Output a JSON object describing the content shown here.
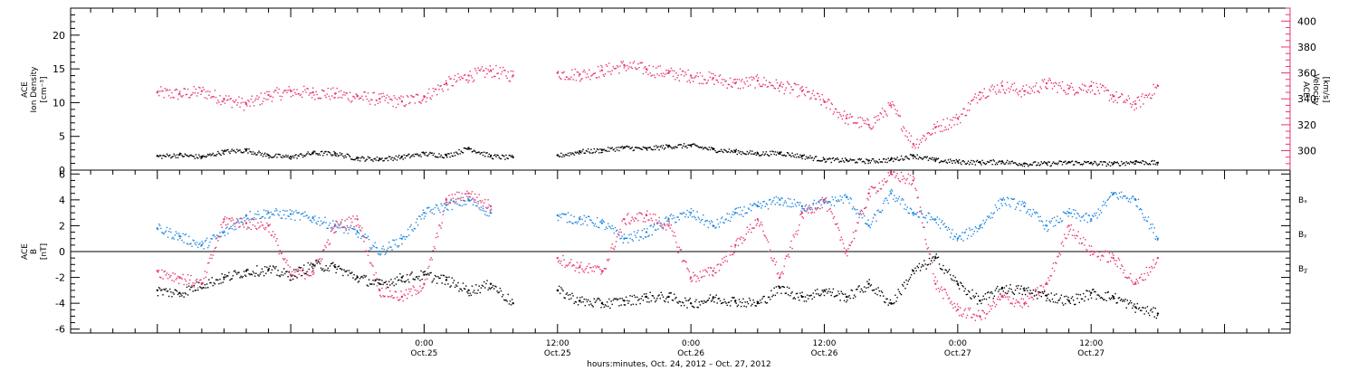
{
  "chart_data": [
    {
      "type": "scatter",
      "panel": "top",
      "ylabel_lines": [
        "ACE",
        "Ion Density",
        "[cm⁻³]"
      ],
      "y2label_lines": [
        "ACE",
        "Velocity",
        "[km/s]"
      ],
      "ylim": [
        0,
        24
      ],
      "y2lim": [
        285,
        410
      ],
      "yticks": [
        0,
        5,
        10,
        15,
        20
      ],
      "y2ticks": [
        300,
        320,
        340,
        360,
        380,
        400
      ],
      "series": [
        {
          "axis": "left",
          "color": "#000000",
          "x": [
            0,
            2,
            4,
            6,
            8,
            10,
            12,
            14,
            16,
            18,
            20,
            22,
            24,
            26,
            28,
            30,
            32,
            34,
            36,
            38,
            40,
            42,
            44,
            46,
            48,
            50,
            52,
            54,
            56,
            58,
            60,
            62,
            64,
            66,
            68,
            70,
            72,
            74,
            76,
            78,
            80,
            82,
            84,
            86,
            88,
            90
          ],
          "y": [
            2.1,
            2.3,
            2.0,
            2.8,
            3.0,
            2.2,
            2.0,
            2.6,
            2.5,
            1.8,
            1.7,
            2.0,
            2.5,
            2.2,
            3.3,
            2.1,
            1.9,
            null,
            2.2,
            2.8,
            3.0,
            3.4,
            3.2,
            3.6,
            3.7,
            3.1,
            2.8,
            2.5,
            2.6,
            2.1,
            1.6,
            1.5,
            1.4,
            1.6,
            2.2,
            1.5,
            1.3,
            1.2,
            1.3,
            1.0,
            1.0,
            1.2,
            1.1,
            1.0,
            1.3,
            1.1
          ]
        },
        {
          "axis": "right",
          "color": "#e8356c",
          "x": [
            0,
            2,
            4,
            6,
            8,
            10,
            12,
            14,
            16,
            18,
            20,
            22,
            24,
            26,
            28,
            30,
            32,
            34,
            36,
            38,
            40,
            42,
            44,
            46,
            48,
            50,
            52,
            54,
            56,
            58,
            60,
            62,
            64,
            66,
            68,
            70,
            72,
            74,
            76,
            78,
            80,
            82,
            84,
            86,
            88,
            90
          ],
          "y": [
            345,
            344,
            346,
            340,
            336,
            343,
            346,
            345,
            344,
            342,
            340,
            338,
            342,
            352,
            358,
            362,
            358,
            null,
            360,
            359,
            362,
            366,
            363,
            360,
            358,
            356,
            352,
            354,
            350,
            346,
            338,
            325,
            320,
            335,
            305,
            318,
            325,
            345,
            350,
            346,
            352,
            348,
            350,
            342,
            336,
            350
          ]
        }
      ]
    },
    {
      "type": "scatter",
      "panel": "bottom",
      "ylabel_lines": [
        "ACE",
        "B",
        "[nT]"
      ],
      "ylim": [
        -6.3,
        6.3
      ],
      "yticks": [
        -6,
        -4,
        -2,
        0,
        2,
        4,
        6
      ],
      "series": [
        {
          "name": "Bₓ",
          "color": "#000000",
          "x": [
            0,
            2,
            4,
            6,
            8,
            10,
            12,
            14,
            16,
            18,
            20,
            22,
            24,
            26,
            28,
            30,
            32,
            34,
            36,
            38,
            40,
            42,
            44,
            46,
            48,
            50,
            52,
            54,
            56,
            58,
            60,
            62,
            64,
            66,
            68,
            70,
            72,
            74,
            76,
            78,
            80,
            82,
            84,
            86,
            88,
            90
          ],
          "y": [
            -3.0,
            -3.2,
            -2.5,
            -2.0,
            -1.5,
            -1.4,
            -1.8,
            -1.0,
            -1.2,
            -2.0,
            -2.5,
            -2.0,
            -1.8,
            -2.2,
            -3.0,
            -2.5,
            -4.0,
            null,
            -3.0,
            -3.8,
            -4.0,
            -3.8,
            -3.5,
            -3.5,
            -4.0,
            -3.6,
            -3.8,
            -4.0,
            -2.8,
            -3.5,
            -3.0,
            -3.5,
            -2.5,
            -4.0,
            -1.5,
            -0.5,
            -2.5,
            -3.8,
            -2.8,
            -3.0,
            -3.4,
            -3.8,
            -3.2,
            -3.5,
            -4.3,
            -4.8
          ]
        },
        {
          "name": "Bᵧ",
          "color": "#1f86e0",
          "x": [
            0,
            2,
            4,
            6,
            8,
            10,
            12,
            14,
            16,
            18,
            20,
            22,
            24,
            26,
            28,
            30,
            32,
            34,
            36,
            38,
            40,
            42,
            44,
            46,
            48,
            50,
            52,
            54,
            56,
            58,
            60,
            62,
            64,
            66,
            68,
            70,
            72,
            74,
            76,
            78,
            80,
            82,
            84,
            86,
            88,
            90
          ],
          "y": [
            1.8,
            1.2,
            0.5,
            1.5,
            2.8,
            3.0,
            2.9,
            2.6,
            2.0,
            1.5,
            0.0,
            1.0,
            3.0,
            3.6,
            4.0,
            3.0,
            null,
            null,
            2.8,
            2.5,
            2.2,
            1.0,
            1.5,
            2.5,
            3.0,
            2.0,
            3.0,
            3.5,
            4.0,
            3.5,
            3.8,
            4.2,
            2.0,
            4.5,
            3.0,
            2.5,
            1.0,
            2.0,
            4.0,
            3.5,
            2.0,
            3.0,
            2.5,
            4.5,
            4.0,
            1.0
          ]
        },
        {
          "name": "B𝓏",
          "color": "#e8356c",
          "x": [
            0,
            2,
            4,
            6,
            8,
            10,
            12,
            14,
            16,
            18,
            20,
            22,
            24,
            26,
            28,
            30,
            32,
            34,
            36,
            38,
            40,
            42,
            44,
            46,
            48,
            50,
            52,
            54,
            56,
            58,
            60,
            62,
            64,
            66,
            68,
            70,
            72,
            74,
            76,
            78,
            80,
            82,
            84,
            86,
            88,
            90
          ],
          "y": [
            -1.5,
            -2.0,
            -2.5,
            2.5,
            2.2,
            2.0,
            -1.8,
            -1.5,
            2.0,
            2.5,
            -3.0,
            -3.5,
            -2.5,
            4.0,
            4.5,
            3.5,
            null,
            null,
            -0.5,
            -1.2,
            -1.5,
            2.5,
            2.8,
            2.0,
            -2.0,
            -1.5,
            0.5,
            2.5,
            -2.0,
            3.0,
            4.0,
            0.0,
            4.5,
            6.0,
            5.5,
            -2.5,
            -4.5,
            -5.0,
            -3.5,
            -4.0,
            -2.5,
            2.0,
            0.0,
            -0.5,
            -2.5,
            -0.5
          ]
        }
      ]
    }
  ],
  "x_axis": {
    "tick_labels": [
      {
        "time": "0:00",
        "date": "Oct.25"
      },
      {
        "time": "12:00",
        "date": "Oct.25"
      },
      {
        "time": "0:00",
        "date": "Oct.26"
      },
      {
        "time": "12:00",
        "date": "Oct.26"
      },
      {
        "time": "0:00",
        "date": "Oct.27"
      },
      {
        "time": "12:00",
        "date": "Oct.27"
      }
    ],
    "xlabel": "hours:minutes, Oct. 24, 2012 – Oct. 27, 2012",
    "xlim_hours": [
      -7.8,
      101.9
    ]
  },
  "legend_labels": [
    "Bₓ",
    "Bᵧ",
    "B𝓏"
  ],
  "colors": {
    "black": "#000000",
    "pink": "#e8356c",
    "blue": "#1f86e0"
  }
}
